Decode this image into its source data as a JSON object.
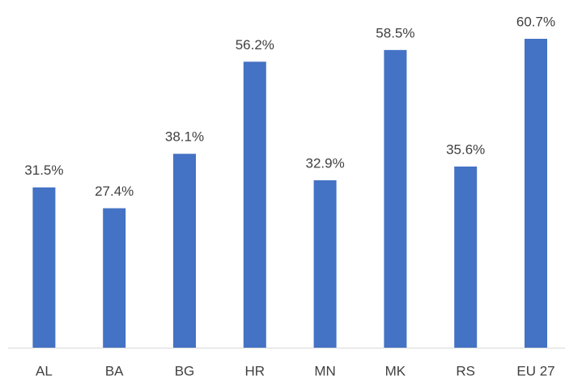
{
  "chart_data": {
    "type": "bar",
    "categories": [
      "AL",
      "BA",
      "BG",
      "HR",
      "MN",
      "MK",
      "RS",
      "EU 27"
    ],
    "values": [
      31.5,
      27.4,
      38.1,
      56.2,
      32.9,
      58.5,
      35.6,
      60.7
    ],
    "value_labels": [
      "31.5%",
      "27.4%",
      "38.1%",
      "56.2%",
      "32.9%",
      "58.5%",
      "35.6%",
      "60.7%"
    ],
    "color": "#4472c4"
  }
}
